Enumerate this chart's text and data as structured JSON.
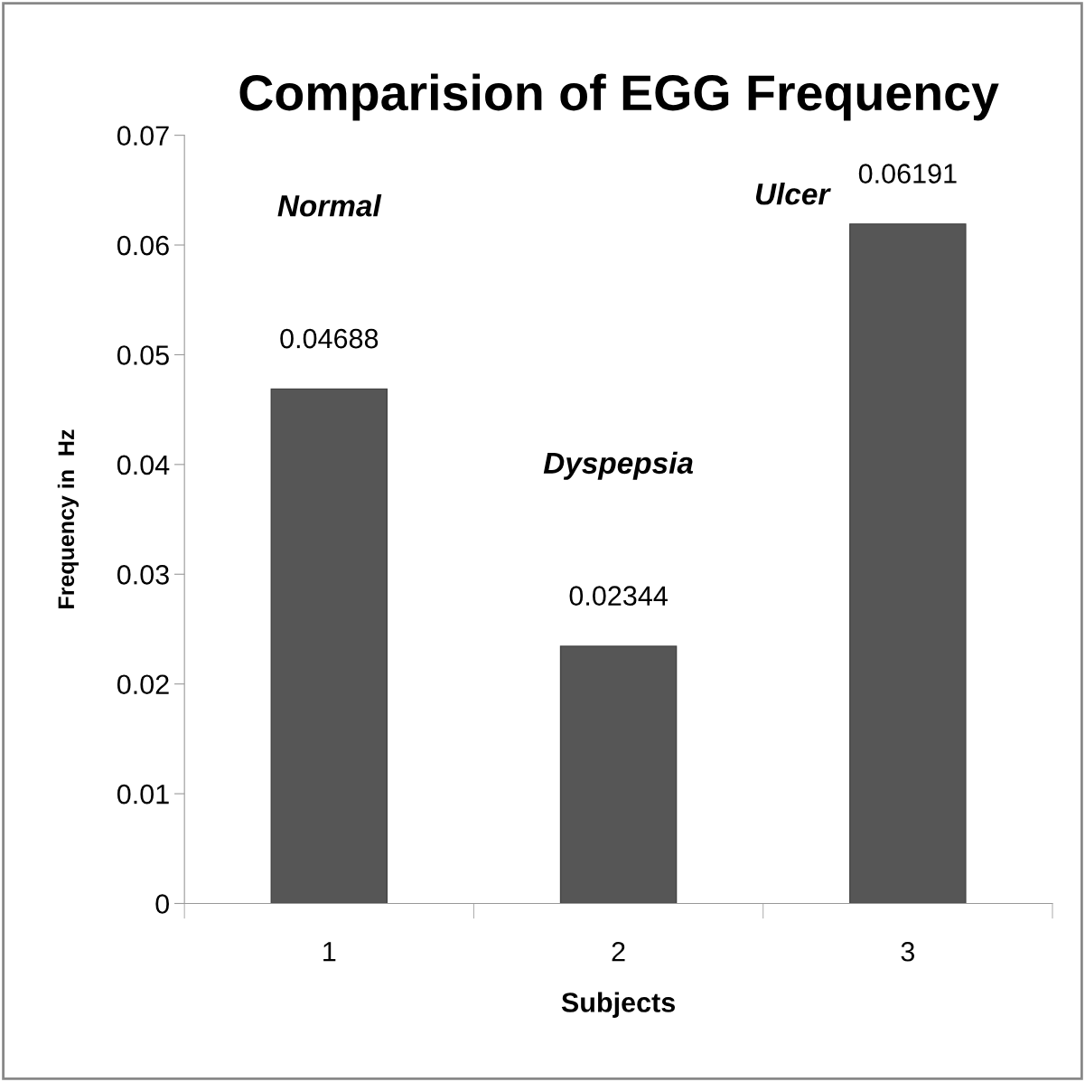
{
  "chart_data": {
    "type": "bar",
    "title": "Comparision of EGG Frequency",
    "xlabel": "Subjects",
    "ylabel": "Frequency in  Hz",
    "categories": [
      "1",
      "2",
      "3"
    ],
    "values": [
      0.04688,
      0.02344,
      0.06191
    ],
    "color": "#565656",
    "ylim": [
      0,
      0.07
    ],
    "yticks": [
      0,
      0.01,
      0.02,
      0.03,
      0.04,
      0.05,
      0.06,
      0.07
    ],
    "data_labels": true,
    "grid": false,
    "annotations": [
      "Normal",
      "Dyspepsia",
      "Ulcer"
    ]
  }
}
